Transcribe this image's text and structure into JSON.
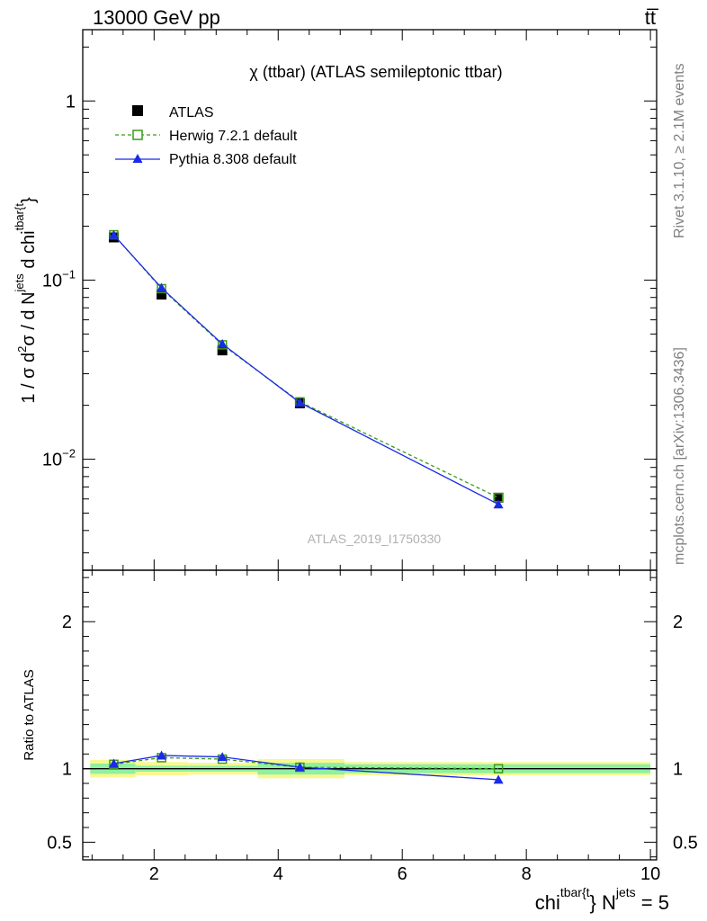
{
  "header": {
    "left": "13000 GeV pp",
    "right": "tt̅"
  },
  "side_labels": {
    "rivet": "Rivet 3.1.10, ≥ 2.1M events",
    "mcplots": "mcplots.cern.ch [arXiv:1306.3436]"
  },
  "watermark": "ATLAS_2019_I1750330",
  "chart_data": {
    "type": "line",
    "title": "χ (ttbar) (ATLAS semileptonic ttbar)",
    "xlabel": {
      "base": "chi",
      "sup1": "tbar{t",
      "mid": "} N",
      "sup2": "jets",
      "tail": " = 5"
    },
    "ylabel": {
      "p1": "1 / σ d",
      "s1": "2",
      "p2": "σ / d N",
      "s2": "jets",
      "p3": " d chi",
      "s3": "tbar{t",
      "p4": "}"
    },
    "ratio_ylabel": "Ratio to ATLAS",
    "xlim": [
      0.85,
      10.1
    ],
    "ylim": [
      0.0024,
      2.5
    ],
    "yscale": "log",
    "ratio_ylim": [
      0.38,
      2.35
    ],
    "x_ticks": [
      2,
      4,
      6,
      8,
      10
    ],
    "x_tick_labels": [
      "2",
      "4",
      "6",
      "8",
      "10"
    ],
    "y_ticks": [
      1,
      0.1,
      0.01
    ],
    "y_tick_labels": [
      {
        "base": "1",
        "exp": ""
      },
      {
        "base": "10",
        "exp": "−1"
      },
      {
        "base": "10",
        "exp": "−2"
      }
    ],
    "ratio_ticks": [
      2,
      1,
      0.5
    ],
    "ratio_tick_labels": [
      "2",
      "1",
      "0.5"
    ],
    "bins": [
      [
        0.97,
        1.7
      ],
      [
        1.7,
        2.55
      ],
      [
        2.55,
        3.67
      ],
      [
        3.67,
        5.07
      ],
      [
        5.07,
        10.0
      ]
    ],
    "legend": {
      "position": "top-left",
      "entries": [
        "ATLAS",
        "Herwig 7.2.1 default",
        "Pythia 8.308 default"
      ]
    },
    "series": [
      {
        "name": "ATLAS",
        "style": "data",
        "color": "#000000",
        "x": [
          1.35,
          2.12,
          3.1,
          4.35,
          7.55
        ],
        "y": [
          0.173,
          0.083,
          0.0405,
          0.0205,
          0.0061
        ],
        "ratio_band_inner": [
          0.035,
          0.02,
          0.02,
          0.04,
          0.03
        ],
        "ratio_band_outer": [
          0.06,
          0.045,
          0.04,
          0.065,
          0.045
        ]
      },
      {
        "name": "Herwig 7.2.1 default",
        "style": "dashed-open-square",
        "color": "#3a9a1a",
        "x": [
          1.35,
          2.12,
          3.1,
          4.35,
          7.55
        ],
        "y": [
          0.179,
          0.0895,
          0.0435,
          0.0209,
          0.0061
        ],
        "ratio": [
          1.03,
          1.075,
          1.065,
          1.01,
          1.0
        ]
      },
      {
        "name": "Pythia 8.308 default",
        "style": "solid-filled-triangle",
        "color": "#1b2ae6",
        "x": [
          1.35,
          2.12,
          3.1,
          4.35,
          7.55
        ],
        "y": [
          0.1785,
          0.0905,
          0.044,
          0.0207,
          0.0056
        ],
        "ratio": [
          1.035,
          1.09,
          1.08,
          1.01,
          0.925
        ]
      }
    ],
    "band_colors": {
      "inner": "#8ef0a0",
      "outer": "#f8f890"
    }
  }
}
